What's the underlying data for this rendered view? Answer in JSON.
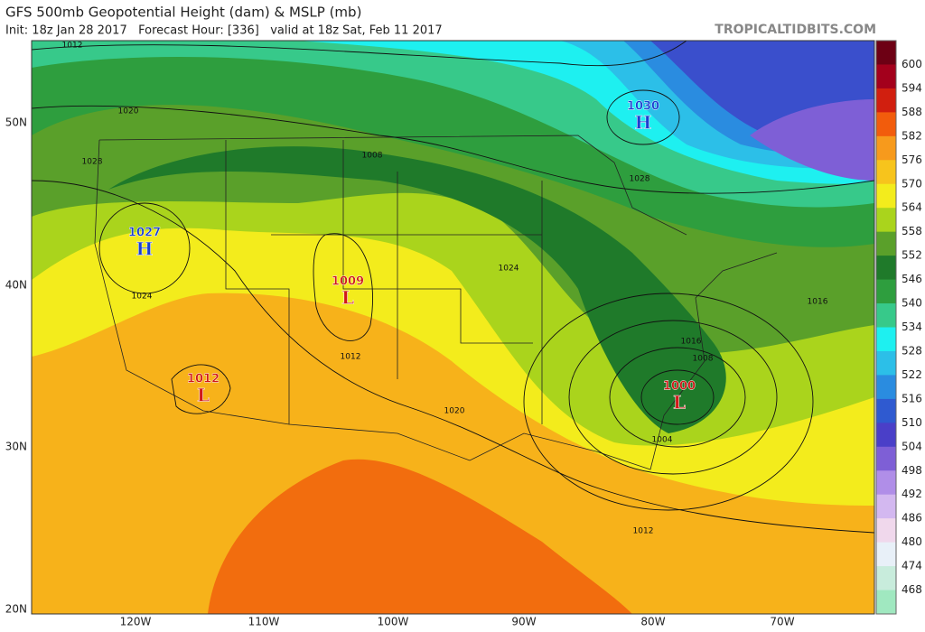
{
  "header": {
    "title": "GFS 500mb Geopotential Height (dam) & MSLP (mb)",
    "subtitle": "Init: 18z Jan 28 2017   Forecast Hour: [336]   valid at 18z Sat, Feb 11 2017",
    "watermark": "TROPICALTIDBITS.COM"
  },
  "colorbar": {
    "labels": [
      "600",
      "594",
      "588",
      "582",
      "576",
      "570",
      "564",
      "558",
      "552",
      "546",
      "540",
      "534",
      "528",
      "522",
      "516",
      "510",
      "504",
      "498",
      "492",
      "486",
      "480",
      "474",
      "468"
    ],
    "colors": [
      "#6d0014",
      "#a3001c",
      "#d11f0f",
      "#f25c0c",
      "#f79a1c",
      "#f7c41c",
      "#f3ec1c",
      "#aad41c",
      "#5aa02a",
      "#1f7a2a",
      "#2e9e3e",
      "#37c98a",
      "#1ef0f0",
      "#2cbfe8",
      "#2a8ce0",
      "#2f5ad0",
      "#4a3fc8",
      "#7e5fd6",
      "#b08ee8",
      "#d3b8f0",
      "#f0d8ec",
      "#e8f0f8",
      "#c8ecdc",
      "#a0e8c0"
    ]
  },
  "axes": {
    "lat_labels": [
      "50N",
      "40N",
      "30N",
      "20N"
    ],
    "lon_labels": [
      "120W",
      "110W",
      "100W",
      "90W",
      "80W",
      "70W"
    ]
  },
  "centers": [
    {
      "type": "H",
      "pressure": "1030"
    },
    {
      "type": "H",
      "pressure": "1027"
    },
    {
      "type": "L",
      "pressure": "1009"
    },
    {
      "type": "L",
      "pressure": "1012"
    },
    {
      "type": "L",
      "pressure": "1000"
    }
  ],
  "isobar_labels": [
    "1012",
    "1020",
    "1028",
    "1024",
    "1008",
    "1028",
    "1024",
    "1016",
    "1012",
    "1020",
    "1016",
    "1008",
    "1004",
    "1012"
  ]
}
